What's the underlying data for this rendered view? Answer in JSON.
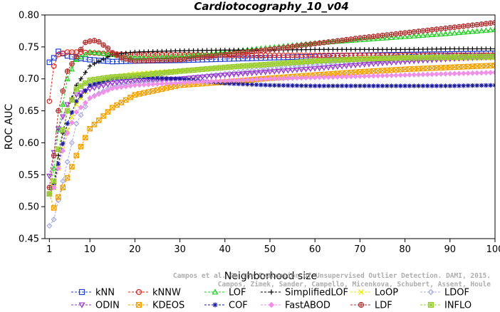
{
  "chart_data": {
    "type": "line",
    "title": "Cardiotocography_10_v04",
    "xlabel": "Neighborhood size",
    "ylabel": "ROC AUC",
    "xlim": [
      0,
      100
    ],
    "ylim": [
      0.45,
      0.8
    ],
    "xticks": [
      1,
      10,
      20,
      30,
      40,
      50,
      60,
      70,
      80,
      90,
      100
    ],
    "yticks": [
      0.45,
      0.5,
      0.55,
      0.6,
      0.65,
      0.7,
      0.75,
      0.8
    ],
    "legend_placement": "bottom",
    "credit_lines": [
      "Campos et al. On the Evaluation of Unsupervised Outlier Detection. DAMI, 2015.",
      "Campos, Zimek, Sander, Campello, Micenkova, Schubert, Assent, Houle"
    ],
    "series": [
      {
        "name": "kNN",
        "color": "#1f3fd1",
        "marker": "square",
        "points": [
          [
            1,
            0.726
          ],
          [
            2,
            0.733
          ],
          [
            3,
            0.743
          ],
          [
            5,
            0.736
          ],
          [
            7,
            0.733
          ],
          [
            10,
            0.73
          ],
          [
            15,
            0.727
          ],
          [
            20,
            0.728
          ],
          [
            30,
            0.729
          ],
          [
            40,
            0.731
          ],
          [
            50,
            0.733
          ],
          [
            60,
            0.735
          ],
          [
            70,
            0.737
          ],
          [
            80,
            0.738
          ],
          [
            90,
            0.739
          ],
          [
            100,
            0.74
          ]
        ]
      },
      {
        "name": "kNNW",
        "color": "#e0201a",
        "marker": "circle",
        "points": [
          [
            1,
            0.665
          ],
          [
            2,
            0.72
          ],
          [
            3,
            0.738
          ],
          [
            5,
            0.742
          ],
          [
            7,
            0.742
          ],
          [
            10,
            0.741
          ],
          [
            15,
            0.739
          ],
          [
            20,
            0.738
          ],
          [
            30,
            0.738
          ],
          [
            40,
            0.737
          ],
          [
            50,
            0.737
          ],
          [
            60,
            0.737
          ],
          [
            70,
            0.737
          ],
          [
            80,
            0.737
          ],
          [
            90,
            0.737
          ],
          [
            100,
            0.737
          ]
        ]
      },
      {
        "name": "LOF",
        "color": "#22cc22",
        "marker": "triangle-up",
        "points": [
          [
            1,
            0.52
          ],
          [
            2,
            0.56
          ],
          [
            3,
            0.62
          ],
          [
            5,
            0.7
          ],
          [
            7,
            0.73
          ],
          [
            10,
            0.742
          ],
          [
            15,
            0.738
          ],
          [
            20,
            0.733
          ],
          [
            30,
            0.735
          ],
          [
            40,
            0.742
          ],
          [
            50,
            0.749
          ],
          [
            60,
            0.756
          ],
          [
            70,
            0.761
          ],
          [
            80,
            0.766
          ],
          [
            90,
            0.771
          ],
          [
            100,
            0.777
          ]
        ]
      },
      {
        "name": "SimplifiedLOF",
        "color": "#000000",
        "marker": "plus",
        "points": [
          [
            1,
            0.52
          ],
          [
            2,
            0.535
          ],
          [
            3,
            0.58
          ],
          [
            5,
            0.65
          ],
          [
            7,
            0.69
          ],
          [
            10,
            0.72
          ],
          [
            15,
            0.738
          ],
          [
            20,
            0.742
          ],
          [
            30,
            0.744
          ],
          [
            40,
            0.745
          ],
          [
            50,
            0.745
          ],
          [
            60,
            0.746
          ],
          [
            70,
            0.746
          ],
          [
            80,
            0.746
          ],
          [
            90,
            0.747
          ],
          [
            100,
            0.747
          ]
        ]
      },
      {
        "name": "LoOP",
        "color": "#e8e800",
        "marker": "x",
        "points": [
          [
            1,
            0.52
          ],
          [
            2,
            0.53
          ],
          [
            3,
            0.56
          ],
          [
            5,
            0.62
          ],
          [
            7,
            0.66
          ],
          [
            10,
            0.69
          ],
          [
            15,
            0.703
          ],
          [
            20,
            0.708
          ],
          [
            30,
            0.713
          ],
          [
            40,
            0.718
          ],
          [
            50,
            0.723
          ],
          [
            60,
            0.727
          ],
          [
            70,
            0.73
          ],
          [
            80,
            0.731
          ],
          [
            90,
            0.732
          ],
          [
            100,
            0.733
          ]
        ]
      },
      {
        "name": "LDOF",
        "color": "#a8a8e0",
        "marker": "diamond",
        "points": [
          [
            1,
            0.47
          ],
          [
            2,
            0.48
          ],
          [
            3,
            0.51
          ],
          [
            5,
            0.57
          ],
          [
            7,
            0.63
          ],
          [
            10,
            0.67
          ],
          [
            15,
            0.688
          ],
          [
            20,
            0.694
          ],
          [
            30,
            0.7
          ],
          [
            40,
            0.708
          ],
          [
            50,
            0.716
          ],
          [
            60,
            0.722
          ],
          [
            70,
            0.727
          ],
          [
            80,
            0.73
          ],
          [
            90,
            0.732
          ],
          [
            100,
            0.733
          ]
        ]
      },
      {
        "name": "ODIN",
        "color": "#9933cc",
        "marker": "triangle-down",
        "points": [
          [
            1,
            0.548
          ],
          [
            2,
            0.585
          ],
          [
            3,
            0.622
          ],
          [
            5,
            0.66
          ],
          [
            7,
            0.675
          ],
          [
            10,
            0.684
          ],
          [
            15,
            0.693
          ],
          [
            20,
            0.697
          ],
          [
            30,
            0.7
          ],
          [
            40,
            0.706
          ],
          [
            50,
            0.711
          ],
          [
            60,
            0.716
          ],
          [
            70,
            0.722
          ],
          [
            80,
            0.727
          ],
          [
            90,
            0.731
          ],
          [
            100,
            0.735
          ]
        ]
      },
      {
        "name": "KDEOS",
        "color": "#f0a000",
        "marker": "square-x",
        "points": [
          [
            1,
            0.52
          ],
          [
            2,
            0.498
          ],
          [
            3,
            0.515
          ],
          [
            5,
            0.545
          ],
          [
            7,
            0.58
          ],
          [
            10,
            0.622
          ],
          [
            15,
            0.655
          ],
          [
            20,
            0.675
          ],
          [
            30,
            0.69
          ],
          [
            40,
            0.695
          ],
          [
            50,
            0.701
          ],
          [
            60,
            0.706
          ],
          [
            70,
            0.711
          ],
          [
            80,
            0.715
          ],
          [
            90,
            0.718
          ],
          [
            100,
            0.721
          ]
        ]
      },
      {
        "name": "COF",
        "color": "#1a1aa0",
        "marker": "asterisk",
        "points": [
          [
            1,
            0.52
          ],
          [
            2,
            0.53
          ],
          [
            3,
            0.567
          ],
          [
            5,
            0.63
          ],
          [
            7,
            0.665
          ],
          [
            10,
            0.69
          ],
          [
            15,
            0.7
          ],
          [
            20,
            0.703
          ],
          [
            30,
            0.7
          ],
          [
            40,
            0.693
          ],
          [
            50,
            0.69
          ],
          [
            60,
            0.689
          ],
          [
            70,
            0.689
          ],
          [
            80,
            0.689
          ],
          [
            90,
            0.689
          ],
          [
            100,
            0.69
          ]
        ]
      },
      {
        "name": "FastABOD",
        "color": "#f090e8",
        "marker": "diamond-filled",
        "points": [
          [
            1,
            0.52
          ],
          [
            2,
            0.53
          ],
          [
            3,
            0.56
          ],
          [
            5,
            0.615
          ],
          [
            7,
            0.648
          ],
          [
            10,
            0.67
          ],
          [
            15,
            0.685
          ],
          [
            20,
            0.69
          ],
          [
            30,
            0.694
          ],
          [
            40,
            0.697
          ],
          [
            50,
            0.7
          ],
          [
            60,
            0.702
          ],
          [
            70,
            0.704
          ],
          [
            80,
            0.706
          ],
          [
            90,
            0.708
          ],
          [
            100,
            0.71
          ]
        ]
      },
      {
        "name": "LDF",
        "color": "#b03030",
        "marker": "circle-plus",
        "points": [
          [
            1,
            0.53
          ],
          [
            2,
            0.58
          ],
          [
            3,
            0.65
          ],
          [
            5,
            0.712
          ],
          [
            7,
            0.735
          ],
          [
            9,
            0.757
          ],
          [
            10,
            0.759
          ],
          [
            11,
            0.76
          ],
          [
            12,
            0.758
          ],
          [
            14,
            0.748
          ],
          [
            15,
            0.741
          ],
          [
            17,
            0.733
          ],
          [
            20,
            0.728
          ],
          [
            30,
            0.73
          ],
          [
            40,
            0.738
          ],
          [
            50,
            0.746
          ],
          [
            60,
            0.755
          ],
          [
            70,
            0.764
          ],
          [
            80,
            0.772
          ],
          [
            90,
            0.78
          ],
          [
            100,
            0.788
          ]
        ]
      },
      {
        "name": "INFLO",
        "color": "#99cc33",
        "marker": "square-star",
        "points": [
          [
            1,
            0.52
          ],
          [
            2,
            0.54
          ],
          [
            3,
            0.59
          ],
          [
            5,
            0.65
          ],
          [
            7,
            0.684
          ],
          [
            10,
            0.698
          ],
          [
            15,
            0.703
          ],
          [
            20,
            0.705
          ],
          [
            30,
            0.712
          ],
          [
            40,
            0.718
          ],
          [
            50,
            0.723
          ],
          [
            60,
            0.728
          ],
          [
            70,
            0.731
          ],
          [
            80,
            0.733
          ],
          [
            90,
            0.734
          ],
          [
            100,
            0.735
          ]
        ]
      }
    ]
  }
}
